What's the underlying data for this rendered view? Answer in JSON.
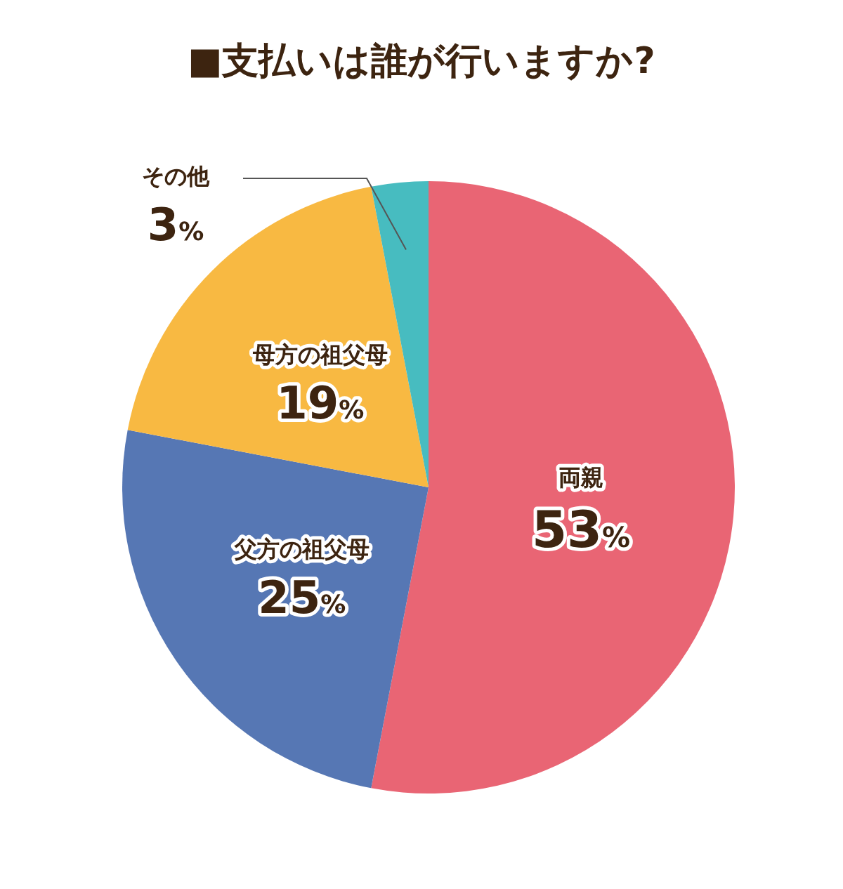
{
  "chart_data": {
    "type": "pie",
    "title": "■支払いは誰が行いますか?",
    "categories": [
      "両親",
      "父方の祖父母",
      "母方の祖父母",
      "その他"
    ],
    "values": [
      53,
      25,
      19,
      3
    ],
    "colors": [
      "#e96574",
      "#5677b4",
      "#f8b942",
      "#47bcc0"
    ],
    "value_labels": [
      "53%",
      "25%",
      "19%",
      "3%"
    ],
    "legend": false
  }
}
